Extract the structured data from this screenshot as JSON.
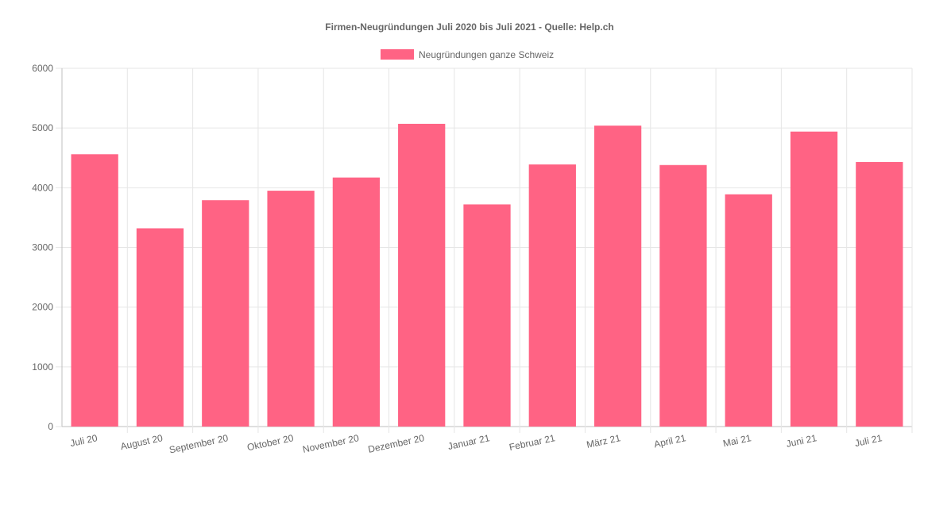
{
  "chart_data": {
    "type": "bar",
    "title": "Firmen-Neugründungen Juli 2020 bis Juli 2021  - Quelle: Help.ch",
    "xlabel": "",
    "ylabel": "",
    "categories": [
      "Juli 20",
      "August 20",
      "September 20",
      "Oktober 20",
      "November 20",
      "Dezember 20",
      "Januar 21",
      "Februar 21",
      "März 21",
      "April 21",
      "Mai 21",
      "Juni 21",
      "Juli 21"
    ],
    "series": [
      {
        "name": "Neugründungen ganze Schweiz",
        "color": "#ff6384",
        "values": [
          4560,
          3320,
          3790,
          3950,
          4170,
          5070,
          3720,
          4390,
          5040,
          4380,
          3890,
          4940,
          4430
        ]
      }
    ],
    "ylim": [
      0,
      6000
    ],
    "yticks": [
      0,
      1000,
      2000,
      3000,
      4000,
      5000,
      6000
    ],
    "grid": true,
    "legend": "top-center"
  }
}
